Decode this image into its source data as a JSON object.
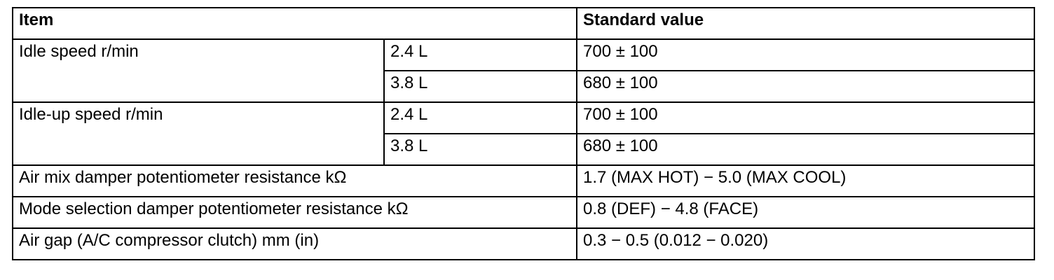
{
  "table": {
    "header": [
      "Item",
      "Standard value"
    ],
    "groups": [
      {
        "item": "Idle speed r/min",
        "rows": [
          [
            "2.4 L",
            "700 ± 100"
          ],
          [
            "3.8 L",
            "680 ± 100"
          ]
        ]
      },
      {
        "item": "Idle-up speed r/min",
        "rows": [
          [
            "2.4 L",
            "700 ± 100"
          ],
          [
            "3.8 L",
            "680 ± 100"
          ]
        ]
      }
    ],
    "rows": [
      [
        "Air mix damper potentiometer resistance kΩ",
        "1.7 (MAX HOT) − 5.0 (MAX COOL)"
      ],
      [
        "Mode selection damper potentiometer resistance kΩ",
        "0.8 (DEF) − 4.8 (FACE)"
      ],
      [
        "Air gap (A/C compressor clutch) mm (in)",
        "0.3 − 0.5 (0.012 − 0.020)"
      ]
    ]
  }
}
